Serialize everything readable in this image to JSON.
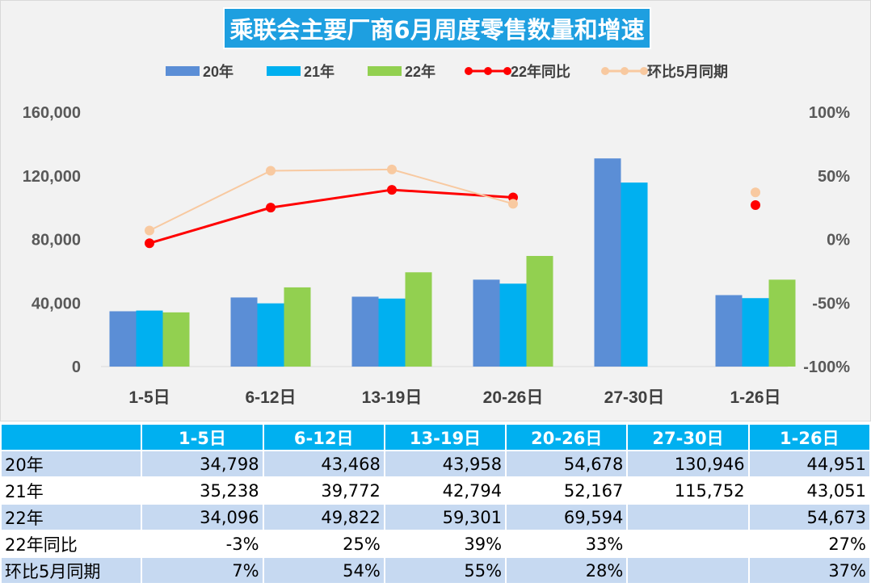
{
  "chart_data": {
    "type": "bar+line",
    "title": "乘联会主要厂商6月周度零售数量和增速",
    "categories": [
      "1-5日",
      "6-12日",
      "13-19日",
      "20-26日",
      "27-30日",
      "1-26日"
    ],
    "series": [
      {
        "name": "20年",
        "type": "bar",
        "axis": "left",
        "color": "#5b8ed6",
        "values": [
          34798,
          43468,
          43958,
          54678,
          130946,
          44951
        ]
      },
      {
        "name": "21年",
        "type": "bar",
        "axis": "left",
        "color": "#00b0f0",
        "values": [
          35238,
          39772,
          42794,
          52167,
          115752,
          43051
        ]
      },
      {
        "name": "22年",
        "type": "bar",
        "axis": "left",
        "color": "#92d050",
        "values": [
          34096,
          49822,
          59301,
          69594,
          null,
          54673
        ]
      },
      {
        "name": "22年同比",
        "type": "line",
        "axis": "right",
        "color": "#ff0000",
        "values": [
          -3,
          25,
          39,
          33,
          null,
          27
        ]
      },
      {
        "name": "环比5月同期",
        "type": "line",
        "axis": "right",
        "color": "#f8c9a0",
        "values": [
          7,
          54,
          55,
          28,
          null,
          37
        ]
      }
    ],
    "y_left": {
      "range": [
        0,
        160000
      ],
      "ticks": [
        "0",
        "40,000",
        "80,000",
        "120,000",
        "160,000"
      ]
    },
    "y_right": {
      "range": [
        -100,
        100
      ],
      "ticks": [
        "-100%",
        "-50%",
        "0%",
        "50%",
        "100%"
      ]
    },
    "legend": "top",
    "grid": false
  },
  "table": {
    "headers": [
      "",
      "1-5日",
      "6-12日",
      "13-19日",
      "20-26日",
      "27-30日",
      "1-26日"
    ],
    "rows": [
      [
        "20年",
        "34,798",
        "43,468",
        "43,958",
        "54,678",
        "130,946",
        "44,951"
      ],
      [
        "21年",
        "35,238",
        "39,772",
        "42,794",
        "52,167",
        "115,752",
        "43,051"
      ],
      [
        "22年",
        "34,096",
        "49,822",
        "59,301",
        "69,594",
        "",
        "54,673"
      ],
      [
        "22年同比",
        "-3%",
        "25%",
        "39%",
        "33%",
        "",
        "27%"
      ],
      [
        "环比5月同期",
        "7%",
        "54%",
        "55%",
        "28%",
        "",
        "37%"
      ]
    ]
  }
}
